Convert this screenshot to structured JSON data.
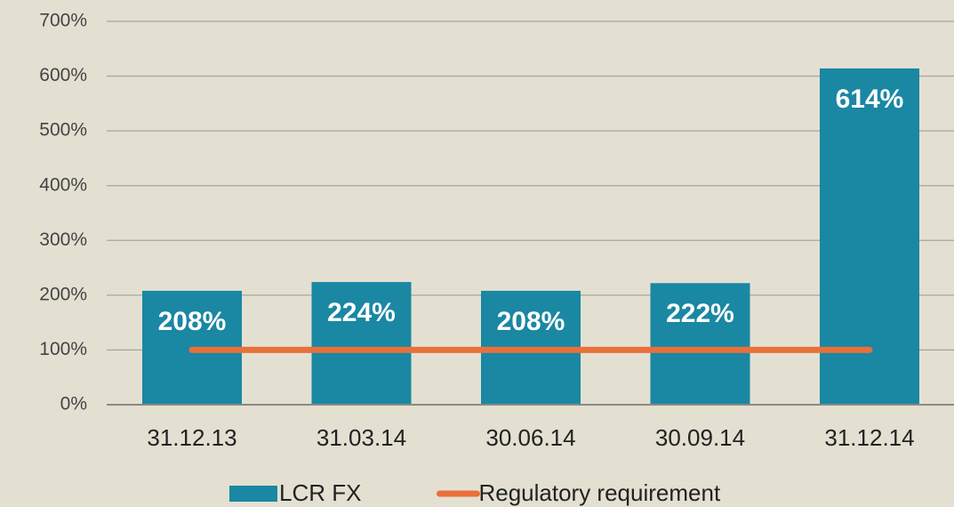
{
  "chart_data": {
    "type": "bar",
    "categories": [
      "31.12.13",
      "31.03.14",
      "30.06.14",
      "30.09.14",
      "31.12.14"
    ],
    "series": [
      {
        "name": "LCR FX",
        "type": "bar",
        "color": "#1a87a3",
        "values": [
          208,
          224,
          208,
          222,
          614
        ],
        "value_labels": [
          "208%",
          "224%",
          "208%",
          "222%",
          "614%"
        ]
      },
      {
        "name": "Regulatory requirement",
        "type": "line",
        "color": "#e8703a",
        "values": [
          100,
          100,
          100,
          100,
          100
        ]
      }
    ],
    "ylim": [
      0,
      700
    ],
    "yticks": [
      {
        "value": 0,
        "label": "0%"
      },
      {
        "value": 100,
        "label": "100%"
      },
      {
        "value": 200,
        "label": "200%"
      },
      {
        "value": 300,
        "label": "300%"
      },
      {
        "value": 400,
        "label": "400%"
      },
      {
        "value": 500,
        "label": "500%"
      },
      {
        "value": 600,
        "label": "600%"
      },
      {
        "value": 700,
        "label": "700%"
      }
    ],
    "grid": true,
    "legend": "bottom"
  }
}
